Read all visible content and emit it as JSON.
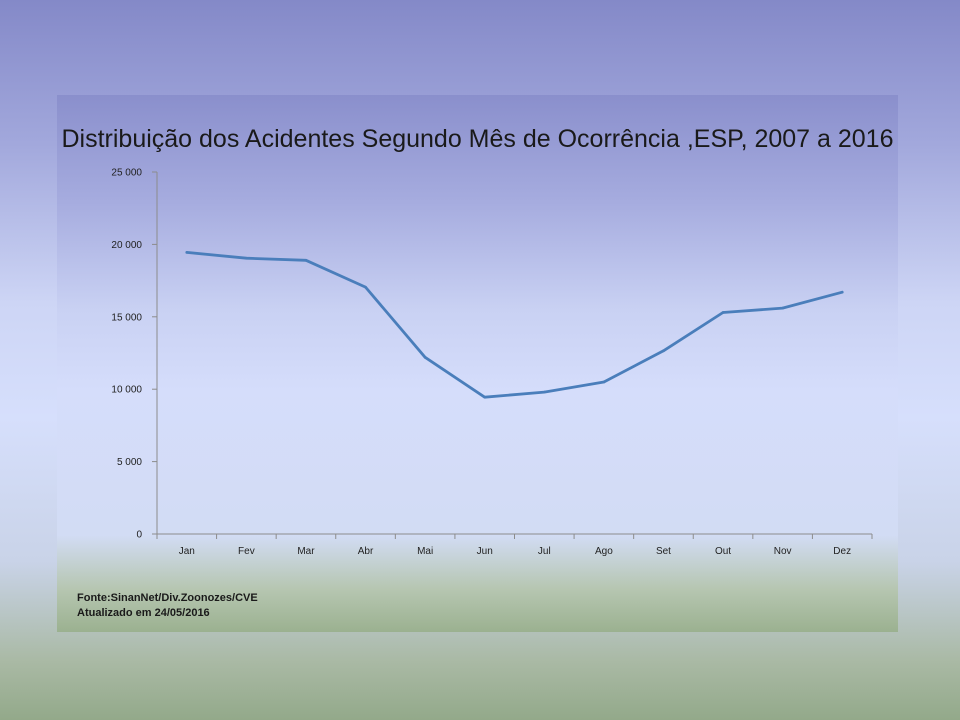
{
  "chart_data": {
    "type": "line",
    "title": "Distribuição dos Acidentes Segundo Mês de Ocorrência ,ESP, 2007 a 2016",
    "categories": [
      "Jan",
      "Fev",
      "Mar",
      "Abr",
      "Mai",
      "Jun",
      "Jul",
      "Ago",
      "Set",
      "Out",
      "Nov",
      "Dez"
    ],
    "series": [
      {
        "values": [
          19450,
          19050,
          18900,
          17050,
          12200,
          9450,
          9800,
          10500,
          12650,
          15300,
          15600,
          16700
        ]
      }
    ],
    "yticks": [
      0,
      5000,
      10000,
      15000,
      20000,
      25000
    ],
    "ytick_labels": [
      "0",
      "5 000",
      "10 000",
      "15 000",
      "20 000",
      "25 000"
    ],
    "ylim": [
      0,
      25000
    ],
    "grid": false,
    "line_color": "#4a7ebb"
  },
  "source": {
    "line1": "Fonte:SinanNet/Div.Zoonozes/CVE",
    "line2": "Atualizado em 24/05/2016"
  }
}
